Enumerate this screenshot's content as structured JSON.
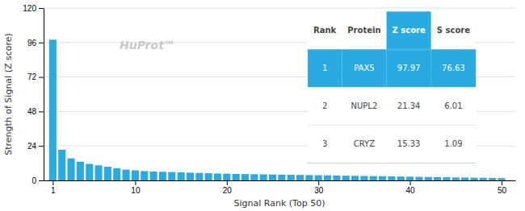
{
  "chart_data": {
    "type": "bar",
    "xlabel": "Signal Rank (Top 50)",
    "ylabel": "Strength of Signal (Z score)",
    "annotations": [
      "HuProt™"
    ],
    "color": "#29ABE2",
    "x": [
      1,
      2,
      3,
      4,
      5,
      6,
      7,
      8,
      9,
      10,
      11,
      12,
      13,
      14,
      15,
      16,
      17,
      18,
      19,
      20,
      21,
      22,
      23,
      24,
      25,
      26,
      27,
      28,
      29,
      30,
      31,
      32,
      33,
      34,
      35,
      36,
      37,
      38,
      39,
      40,
      41,
      42,
      43,
      44,
      45,
      46,
      47,
      48,
      49,
      50
    ],
    "values": [
      97.97,
      21.34,
      15.33,
      13.0,
      11.5,
      10.5,
      9.5,
      8.5,
      7.5,
      7.0,
      6.5,
      6.2,
      6.0,
      5.8,
      5.6,
      5.4,
      5.2,
      5.0,
      4.8,
      4.7,
      4.5,
      4.4,
      4.3,
      4.2,
      4.1,
      4.0,
      3.9,
      3.8,
      3.7,
      3.6,
      3.5,
      3.4,
      3.3,
      3.2,
      3.1,
      3.0,
      2.9,
      2.8,
      2.7,
      2.6,
      2.5,
      2.4,
      2.3,
      2.2,
      2.1,
      2.0,
      1.9,
      1.8,
      1.7,
      1.6
    ],
    "xlim": [
      0,
      51.5
    ],
    "xticks": [
      1,
      10,
      20,
      30,
      40,
      50
    ],
    "ylim": [
      0,
      120
    ],
    "yticks": [
      0,
      24,
      48,
      72,
      96,
      120
    ],
    "grid": true,
    "table": {
      "color": "#29ABE2",
      "columns": [
        "Rank",
        "Protein",
        "Z score",
        "S score"
      ],
      "rows": [
        [
          "1",
          "PAX5",
          "97.97",
          "76.63"
        ],
        [
          "2",
          "NUPL2",
          "21.34",
          "6.01"
        ],
        [
          "3",
          "CRYZ",
          "15.33",
          "1.09"
        ]
      ]
    }
  }
}
